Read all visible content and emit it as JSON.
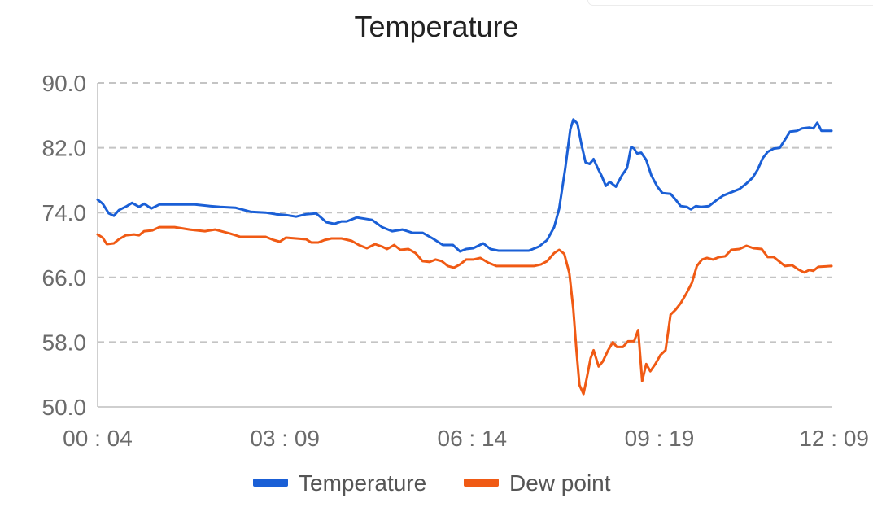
{
  "chart_data": {
    "type": "line",
    "title": "Temperature",
    "ylim": [
      50,
      90
    ],
    "y_ticks": [
      "50.0",
      "58.0",
      "66.0",
      "74.0",
      "82.0",
      "90.0"
    ],
    "x_ticks": [
      "00 : 04",
      "03 : 09",
      "06 : 14",
      "09 : 19",
      "12 : 09"
    ],
    "x_tick_minutes": [
      4,
      189,
      374,
      559,
      729
    ],
    "x_range_minutes": [
      4,
      729
    ],
    "series": [
      {
        "name": "Temperature",
        "color": "#1a5fd6",
        "points": [
          [
            4,
            75.6
          ],
          [
            9,
            75.1
          ],
          [
            15,
            73.9
          ],
          [
            20,
            73.6
          ],
          [
            25,
            74.3
          ],
          [
            33,
            74.8
          ],
          [
            38,
            75.2
          ],
          [
            45,
            74.7
          ],
          [
            50,
            75.1
          ],
          [
            57,
            74.5
          ],
          [
            65,
            75.0
          ],
          [
            80,
            75.0
          ],
          [
            100,
            75.0
          ],
          [
            115,
            74.8
          ],
          [
            125,
            74.7
          ],
          [
            140,
            74.6
          ],
          [
            155,
            74.1
          ],
          [
            170,
            74.0
          ],
          [
            180,
            73.8
          ],
          [
            190,
            73.7
          ],
          [
            200,
            73.5
          ],
          [
            210,
            73.8
          ],
          [
            220,
            73.9
          ],
          [
            230,
            72.8
          ],
          [
            238,
            72.6
          ],
          [
            245,
            72.9
          ],
          [
            250,
            72.9
          ],
          [
            260,
            73.4
          ],
          [
            275,
            73.1
          ],
          [
            285,
            72.2
          ],
          [
            295,
            71.7
          ],
          [
            305,
            71.9
          ],
          [
            315,
            71.5
          ],
          [
            325,
            71.5
          ],
          [
            335,
            70.8
          ],
          [
            345,
            70.0
          ],
          [
            355,
            70.0
          ],
          [
            362,
            69.2
          ],
          [
            368,
            69.5
          ],
          [
            375,
            69.6
          ],
          [
            385,
            70.2
          ],
          [
            392,
            69.5
          ],
          [
            400,
            69.3
          ],
          [
            410,
            69.3
          ],
          [
            420,
            69.3
          ],
          [
            430,
            69.3
          ],
          [
            440,
            69.8
          ],
          [
            448,
            70.6
          ],
          [
            455,
            72.2
          ],
          [
            460,
            74.5
          ],
          [
            466,
            79.5
          ],
          [
            471,
            84.3
          ],
          [
            474,
            85.5
          ],
          [
            478,
            85.0
          ],
          [
            482,
            82.4
          ],
          [
            486,
            80.2
          ],
          [
            490,
            80.0
          ],
          [
            494,
            80.6
          ],
          [
            498,
            79.5
          ],
          [
            502,
            78.5
          ],
          [
            506,
            77.3
          ],
          [
            510,
            77.8
          ],
          [
            516,
            77.2
          ],
          [
            522,
            78.6
          ],
          [
            527,
            79.5
          ],
          [
            531,
            82.1
          ],
          [
            534,
            81.9
          ],
          [
            537,
            81.3
          ],
          [
            541,
            81.4
          ],
          [
            546,
            80.5
          ],
          [
            551,
            78.6
          ],
          [
            557,
            77.2
          ],
          [
            562,
            76.4
          ],
          [
            570,
            76.3
          ],
          [
            575,
            75.6
          ],
          [
            580,
            74.8
          ],
          [
            586,
            74.7
          ],
          [
            590,
            74.4
          ],
          [
            595,
            74.8
          ],
          [
            600,
            74.7
          ],
          [
            608,
            74.8
          ],
          [
            615,
            75.5
          ],
          [
            622,
            76.1
          ],
          [
            630,
            76.5
          ],
          [
            638,
            76.9
          ],
          [
            645,
            77.6
          ],
          [
            651,
            78.3
          ],
          [
            656,
            79.3
          ],
          [
            661,
            80.7
          ],
          [
            666,
            81.5
          ],
          [
            672,
            81.9
          ],
          [
            678,
            82.0
          ],
          [
            683,
            83.0
          ],
          [
            688,
            84.0
          ],
          [
            695,
            84.1
          ],
          [
            700,
            84.4
          ],
          [
            707,
            84.5
          ],
          [
            711,
            84.4
          ],
          [
            715,
            85.1
          ],
          [
            719,
            84.1
          ],
          [
            729,
            84.1
          ]
        ]
      },
      {
        "name": "Dew point",
        "color": "#f05a14",
        "points": [
          [
            4,
            71.3
          ],
          [
            9,
            70.9
          ],
          [
            13,
            70.1
          ],
          [
            20,
            70.2
          ],
          [
            25,
            70.7
          ],
          [
            32,
            71.2
          ],
          [
            40,
            71.3
          ],
          [
            45,
            71.2
          ],
          [
            50,
            71.7
          ],
          [
            58,
            71.8
          ],
          [
            65,
            72.2
          ],
          [
            80,
            72.2
          ],
          [
            95,
            71.9
          ],
          [
            110,
            71.7
          ],
          [
            120,
            71.9
          ],
          [
            135,
            71.4
          ],
          [
            145,
            71.0
          ],
          [
            160,
            71.0
          ],
          [
            170,
            71.0
          ],
          [
            178,
            70.6
          ],
          [
            184,
            70.4
          ],
          [
            190,
            70.9
          ],
          [
            200,
            70.8
          ],
          [
            210,
            70.7
          ],
          [
            215,
            70.3
          ],
          [
            222,
            70.3
          ],
          [
            228,
            70.6
          ],
          [
            235,
            70.8
          ],
          [
            245,
            70.8
          ],
          [
            255,
            70.5
          ],
          [
            262,
            70.0
          ],
          [
            270,
            69.6
          ],
          [
            278,
            70.1
          ],
          [
            285,
            69.8
          ],
          [
            290,
            69.5
          ],
          [
            297,
            70.0
          ],
          [
            303,
            69.4
          ],
          [
            311,
            69.5
          ],
          [
            318,
            69.0
          ],
          [
            325,
            68.0
          ],
          [
            332,
            67.9
          ],
          [
            338,
            68.2
          ],
          [
            344,
            68.0
          ],
          [
            350,
            67.4
          ],
          [
            356,
            67.2
          ],
          [
            362,
            67.6
          ],
          [
            368,
            68.2
          ],
          [
            375,
            68.2
          ],
          [
            382,
            68.4
          ],
          [
            390,
            67.8
          ],
          [
            398,
            67.4
          ],
          [
            410,
            67.4
          ],
          [
            425,
            67.4
          ],
          [
            435,
            67.4
          ],
          [
            442,
            67.6
          ],
          [
            448,
            68.0
          ],
          [
            455,
            69.0
          ],
          [
            460,
            69.4
          ],
          [
            465,
            68.9
          ],
          [
            470,
            66.5
          ],
          [
            474,
            62.0
          ],
          [
            477,
            57.0
          ],
          [
            480,
            52.7
          ],
          [
            484,
            51.6
          ],
          [
            487,
            53.4
          ],
          [
            491,
            56.0
          ],
          [
            494,
            57.0
          ],
          [
            499,
            55.0
          ],
          [
            503,
            55.6
          ],
          [
            508,
            56.9
          ],
          [
            513,
            58.0
          ],
          [
            517,
            57.4
          ],
          [
            523,
            57.4
          ],
          [
            528,
            58.1
          ],
          [
            534,
            58.1
          ],
          [
            538,
            59.5
          ],
          [
            542,
            53.2
          ],
          [
            546,
            55.3
          ],
          [
            550,
            54.4
          ],
          [
            555,
            55.3
          ],
          [
            560,
            56.4
          ],
          [
            565,
            57.0
          ],
          [
            570,
            61.4
          ],
          [
            575,
            62.0
          ],
          [
            580,
            62.8
          ],
          [
            586,
            64.1
          ],
          [
            591,
            65.3
          ],
          [
            596,
            67.4
          ],
          [
            601,
            68.2
          ],
          [
            606,
            68.4
          ],
          [
            612,
            68.2
          ],
          [
            618,
            68.5
          ],
          [
            624,
            68.6
          ],
          [
            630,
            69.4
          ],
          [
            638,
            69.5
          ],
          [
            645,
            69.9
          ],
          [
            652,
            69.6
          ],
          [
            660,
            69.5
          ],
          [
            666,
            68.5
          ],
          [
            672,
            68.5
          ],
          [
            677,
            68.0
          ],
          [
            683,
            67.4
          ],
          [
            690,
            67.5
          ],
          [
            696,
            67.0
          ],
          [
            702,
            66.6
          ],
          [
            707,
            66.9
          ],
          [
            711,
            66.8
          ],
          [
            716,
            67.3
          ],
          [
            729,
            67.4
          ]
        ]
      }
    ]
  }
}
